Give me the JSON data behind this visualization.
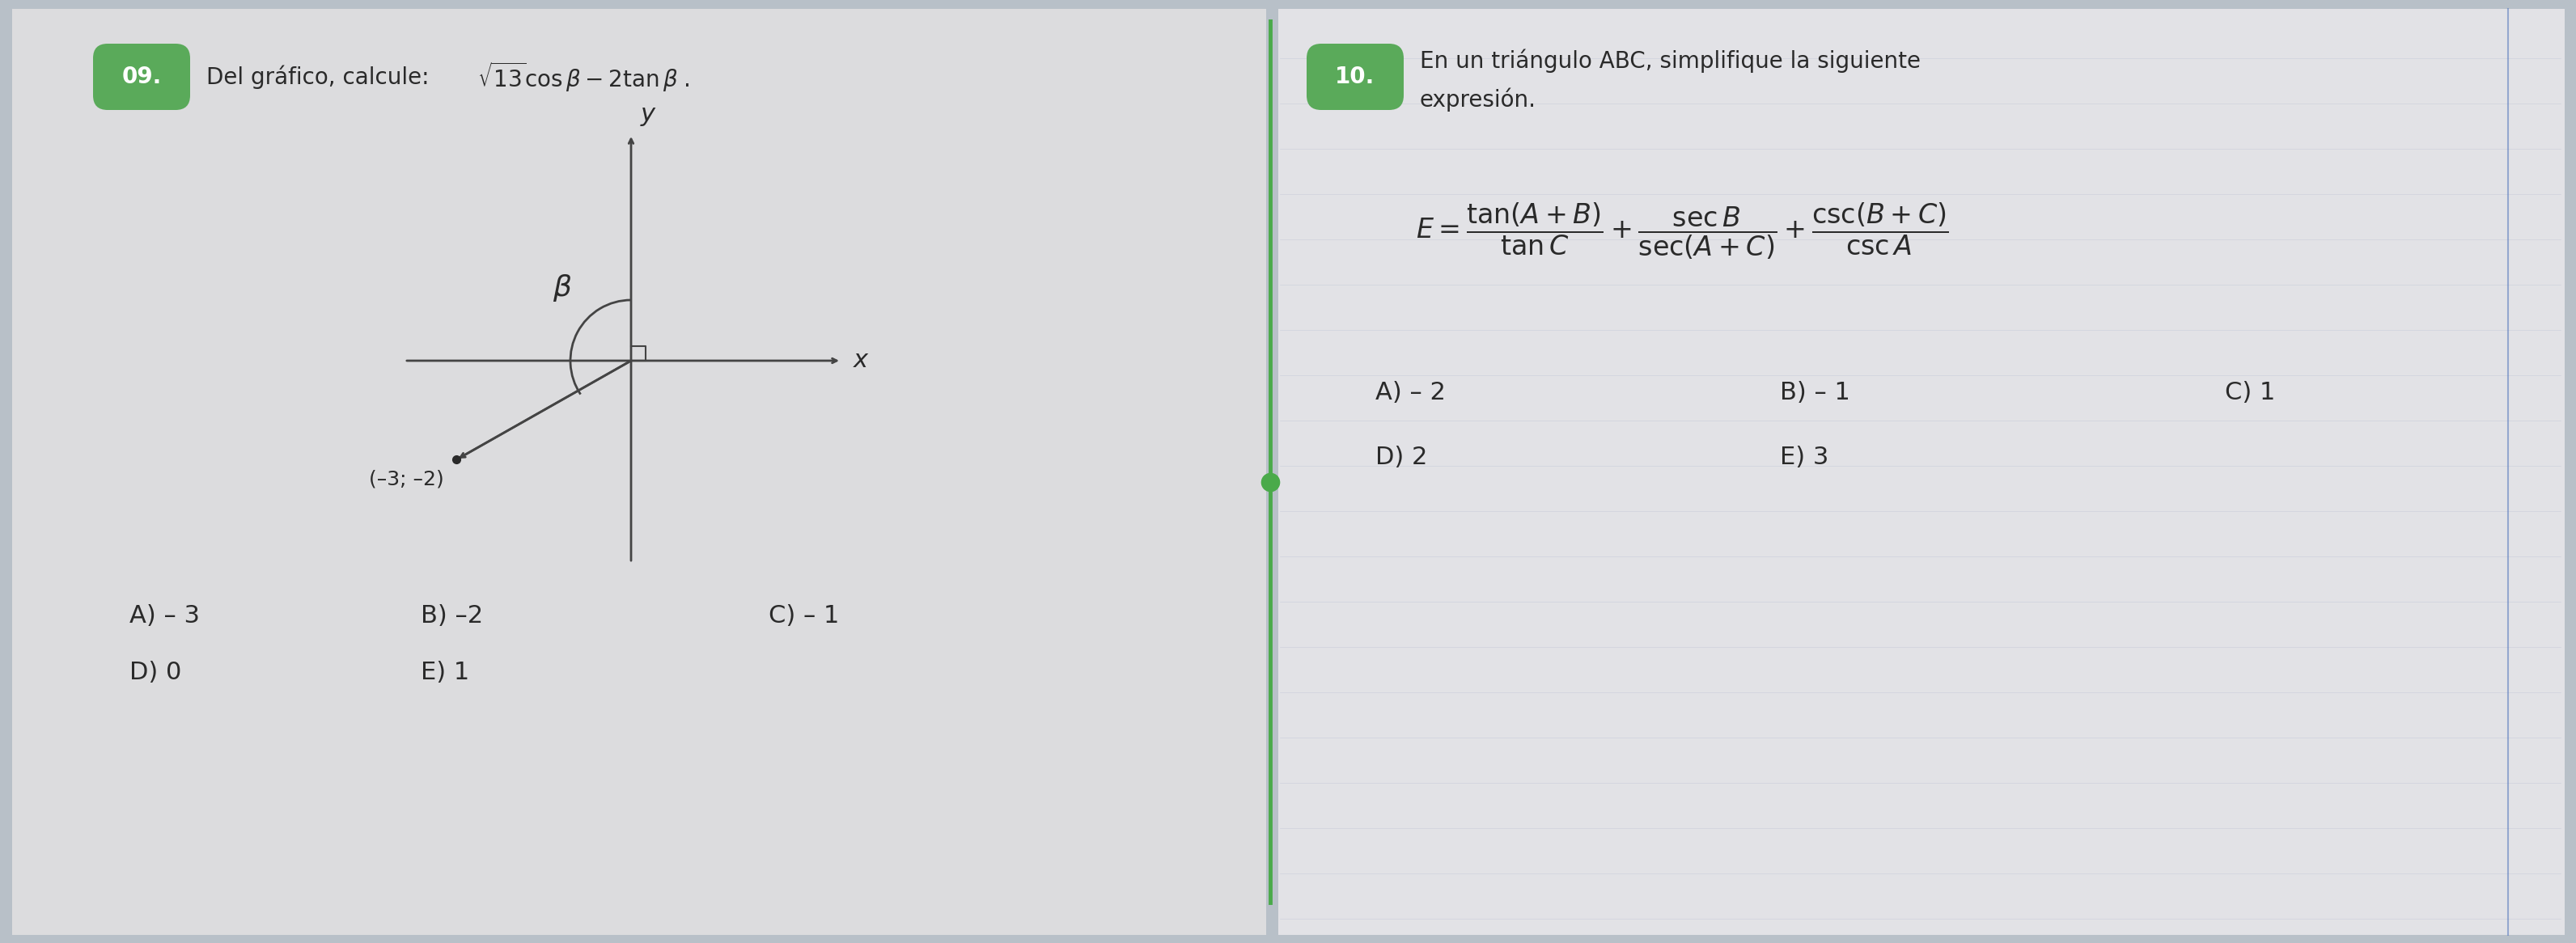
{
  "bg_color": "#b8c0c8",
  "page_color": "#e8e8ec",
  "q09_badge_color": "#5aaa5a",
  "q09_badge_text": "09.",
  "q10_badge_color": "#5aaa5a",
  "q10_badge_text": "10.",
  "divider_color": "#4aaa4a",
  "text_color": "#2a2a2a",
  "axis_color": "#444444",
  "point_label": "(–3; –2)",
  "q09_title_plain": "Del gráfico, calcule: ",
  "q09_title_math": "$\\sqrt{13}\\cos\\beta - 2\\tan\\beta$",
  "q10_line1": "En un triángulo ABC, simplifique la siguiente",
  "q10_line2": "expresión.",
  "q10_formula": "$E = \\dfrac{\\tan(A+B)}{\\tan C} + \\dfrac{\\sec B}{\\sec(A+C)} + \\dfrac{\\csc(B+C)}{\\csc A}$",
  "q09_row1": [
    "A) – 3",
    "B) –2",
    "C) – 1"
  ],
  "q09_row2": [
    "D) 0",
    "E) 1"
  ],
  "q10_row1": [
    "A) – 2",
    "B) – 1",
    "C) 1"
  ],
  "q10_row2": [
    "D) 2",
    "E) 3"
  ],
  "fig_width": 31.84,
  "fig_height": 11.66
}
